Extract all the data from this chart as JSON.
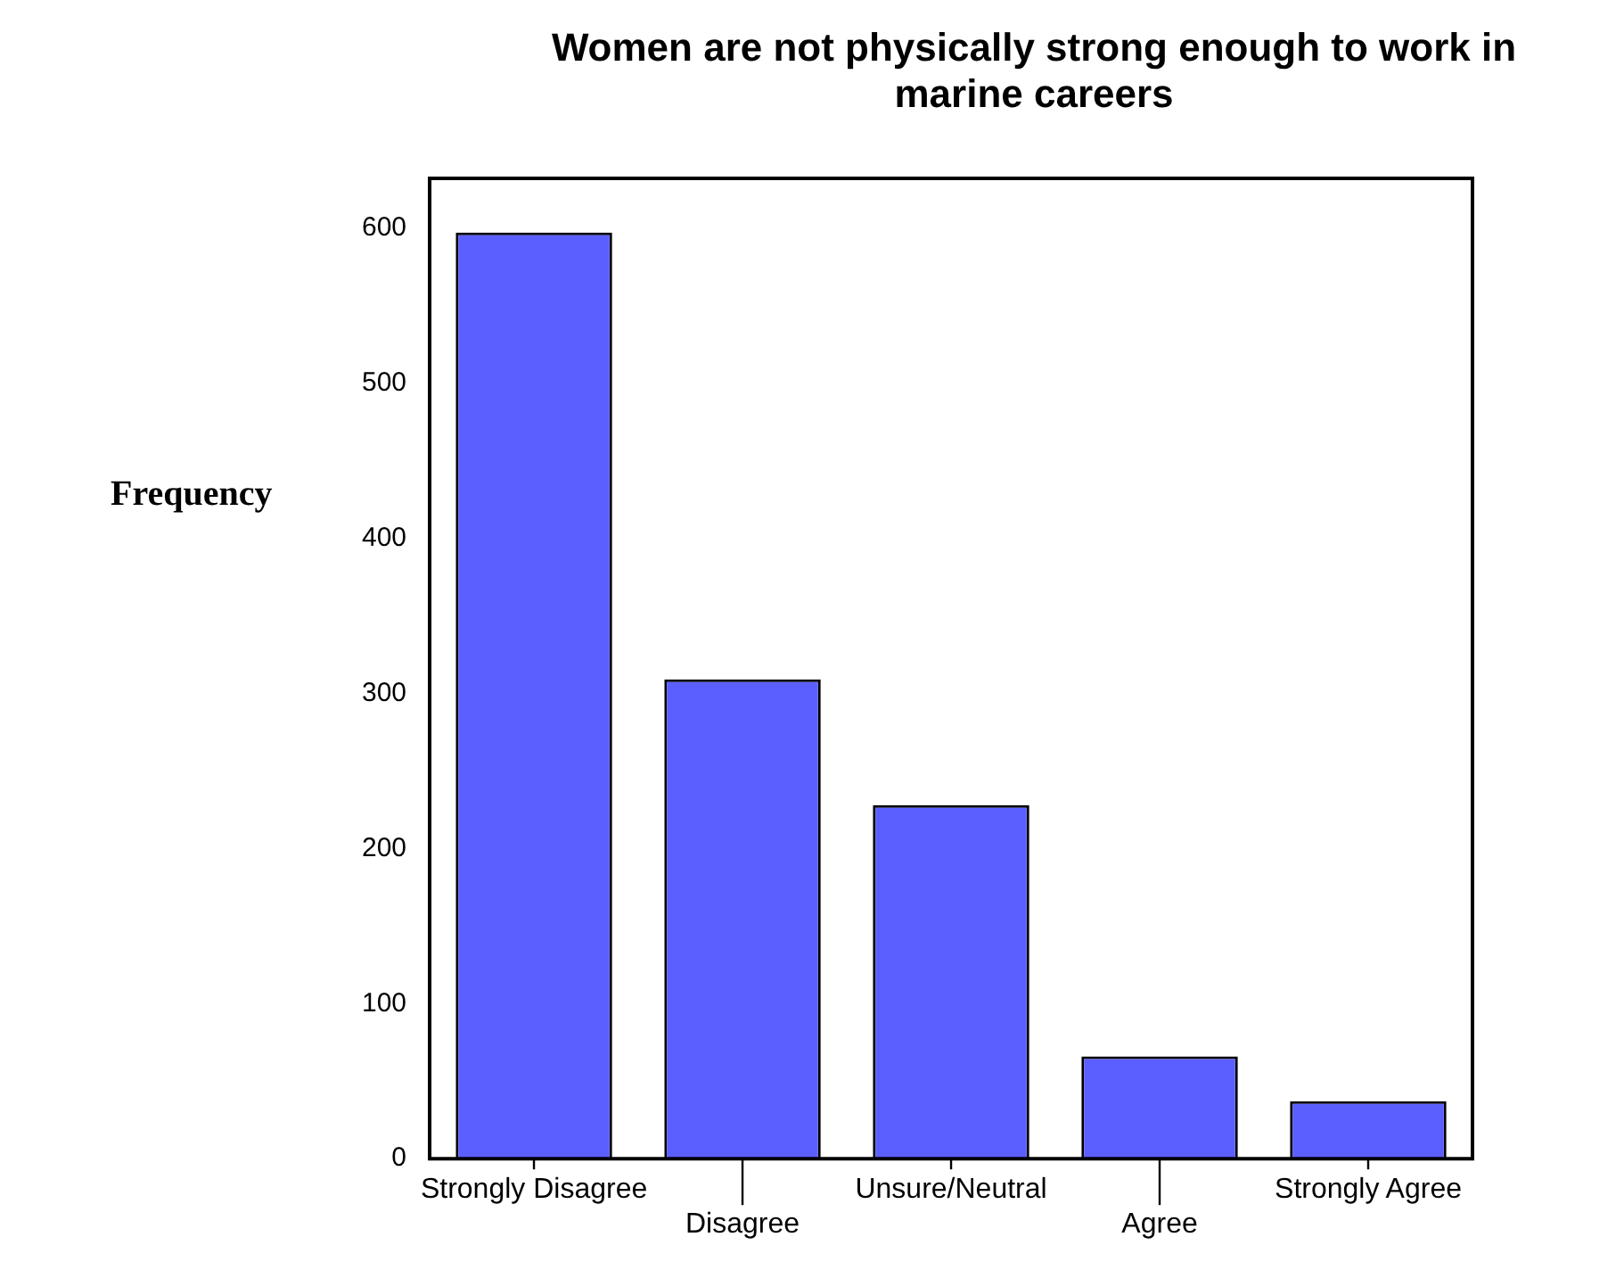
{
  "chart_data": {
    "type": "bar",
    "title": "Women are not physically strong enough to work in marine careers",
    "ylabel": "Frequency",
    "categories": [
      "Strongly Disagree",
      "Disagree",
      "Unsure/Neutral",
      "Agree",
      "Strongly Agree"
    ],
    "values": [
      597,
      309,
      228,
      66,
      37
    ],
    "color": "#5b5fff",
    "ylim": [
      0,
      632
    ],
    "yticks": [
      0,
      100,
      200,
      300,
      400,
      500,
      600
    ],
    "grid": false,
    "legend": false
  }
}
